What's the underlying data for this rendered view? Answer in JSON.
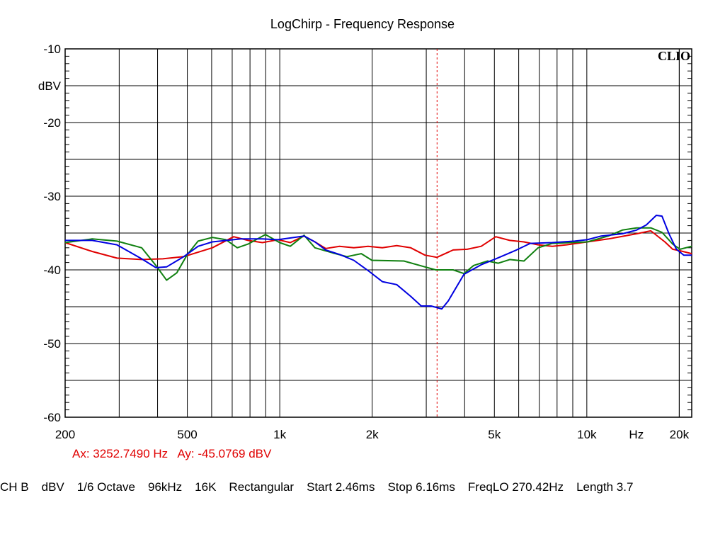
{
  "chart_data": {
    "type": "line",
    "title": "LogChirp - Frequency Response",
    "xlabel": "Hz",
    "ylabel": "dBV",
    "x_scale": "log",
    "xlim": [
      200,
      21960
    ],
    "ylim": [
      -60,
      -10
    ],
    "grid": true,
    "logo": "CLIO",
    "x_ticks": [
      {
        "value": 200,
        "label": "200"
      },
      {
        "value": 500,
        "label": "500"
      },
      {
        "value": 1000,
        "label": "1k"
      },
      {
        "value": 2000,
        "label": "2k"
      },
      {
        "value": 5000,
        "label": "5k"
      },
      {
        "value": 10000,
        "label": "10k"
      },
      {
        "value": 20000,
        "label": "20k"
      }
    ],
    "x_unit_label": {
      "value": 14500,
      "label": "Hz"
    },
    "y_ticks": [
      {
        "value": -10,
        "label": "-10"
      },
      {
        "value": -20,
        "label": "-20"
      },
      {
        "value": -30,
        "label": "-30"
      },
      {
        "value": -40,
        "label": "-40"
      },
      {
        "value": -50,
        "label": "-50"
      },
      {
        "value": -60,
        "label": "-60"
      }
    ],
    "y_unit_label": {
      "value": -15,
      "label": "dBV"
    },
    "cursor": {
      "x": 3252.749,
      "y": -45.0769,
      "color": "#e00000"
    },
    "series": [
      {
        "name": "red",
        "color": "#e00000",
        "x": [
          200,
          245,
          295,
          355,
          416,
          487,
          603,
          708,
          788,
          878,
          986,
          1082,
          1200,
          1302,
          1412,
          1565,
          1742,
          1939,
          2158,
          2403,
          2670,
          2970,
          3250,
          3670,
          4080,
          4530,
          5050,
          5610,
          6240,
          6940,
          7720,
          8590,
          10040,
          11750,
          14530,
          16160,
          17960,
          19040,
          20120,
          21960
        ],
        "y": [
          -36.3,
          -37.5,
          -38.4,
          -38.6,
          -38.5,
          -38.2,
          -37.0,
          -35.5,
          -36.0,
          -36.3,
          -35.9,
          -36.3,
          -35.4,
          -36.2,
          -37.1,
          -36.8,
          -37.0,
          -36.8,
          -37.0,
          -36.7,
          -37.0,
          -38.0,
          -38.3,
          -37.3,
          -37.2,
          -36.8,
          -35.5,
          -36.0,
          -36.2,
          -36.6,
          -36.8,
          -36.6,
          -36.2,
          -35.8,
          -35.1,
          -34.7,
          -36.2,
          -37.2,
          -37.4,
          -37.8
        ]
      },
      {
        "name": "green",
        "color": "#108010",
        "x": [
          200,
          245,
          295,
          355,
          395,
          428,
          462,
          500,
          542,
          603,
          668,
          727,
          788,
          898,
          999,
          1082,
          1200,
          1302,
          1488,
          1655,
          1843,
          1996,
          2537,
          2970,
          3220,
          3670,
          3980,
          4280,
          4750,
          5150,
          5610,
          6240,
          6940,
          7720,
          10040,
          11750,
          13060,
          14530,
          16160,
          17570,
          19040,
          20120,
          21960
        ],
        "y": [
          -36.3,
          -35.8,
          -36.1,
          -37.0,
          -39.4,
          -41.4,
          -40.4,
          -37.9,
          -36.1,
          -35.6,
          -35.9,
          -37.0,
          -36.5,
          -35.2,
          -36.3,
          -36.8,
          -35.3,
          -37.0,
          -37.7,
          -38.2,
          -37.8,
          -38.7,
          -38.8,
          -39.6,
          -40.0,
          -40.0,
          -40.5,
          -39.4,
          -38.8,
          -39.1,
          -38.6,
          -38.8,
          -37.0,
          -36.4,
          -36.2,
          -35.4,
          -34.6,
          -34.3,
          -34.3,
          -34.9,
          -36.5,
          -37.2,
          -36.8
        ]
      },
      {
        "name": "blue",
        "color": "#0000e0",
        "x": [
          200,
          245,
          295,
          355,
          395,
          428,
          487,
          542,
          603,
          747,
          878,
          986,
          1200,
          1302,
          1412,
          1565,
          1742,
          1939,
          2158,
          2403,
          2670,
          2890,
          3110,
          3370,
          3540,
          3980,
          4530,
          5050,
          5460,
          5900,
          6540,
          7720,
          9130,
          10040,
          11140,
          13060,
          14530,
          15620,
          16840,
          17570,
          18520,
          19580,
          20680,
          21960
        ],
        "y": [
          -36.0,
          -36.0,
          -36.6,
          -38.5,
          -39.7,
          -39.6,
          -38.2,
          -36.8,
          -36.2,
          -35.8,
          -35.8,
          -35.9,
          -35.4,
          -36.2,
          -37.3,
          -37.9,
          -38.7,
          -40.1,
          -41.6,
          -42.0,
          -43.6,
          -44.9,
          -44.9,
          -45.3,
          -44.2,
          -40.6,
          -39.3,
          -38.5,
          -37.9,
          -37.3,
          -36.4,
          -36.3,
          -36.1,
          -35.9,
          -35.4,
          -35.1,
          -34.6,
          -33.9,
          -32.6,
          -32.7,
          -35.1,
          -37.2,
          -38.0,
          -38.0
        ]
      }
    ]
  },
  "cursor_readout": {
    "ax": "Ax: 3252.7490 Hz",
    "ay": "Ay: -45.0769 dBV"
  },
  "footer": [
    "CH B",
    "dBV",
    "1/6 Octave",
    "96kHz",
    "16K",
    "Rectangular",
    "Start 2.46ms",
    "Stop 6.16ms",
    "FreqLO 270.42Hz",
    "Length 3.7"
  ]
}
